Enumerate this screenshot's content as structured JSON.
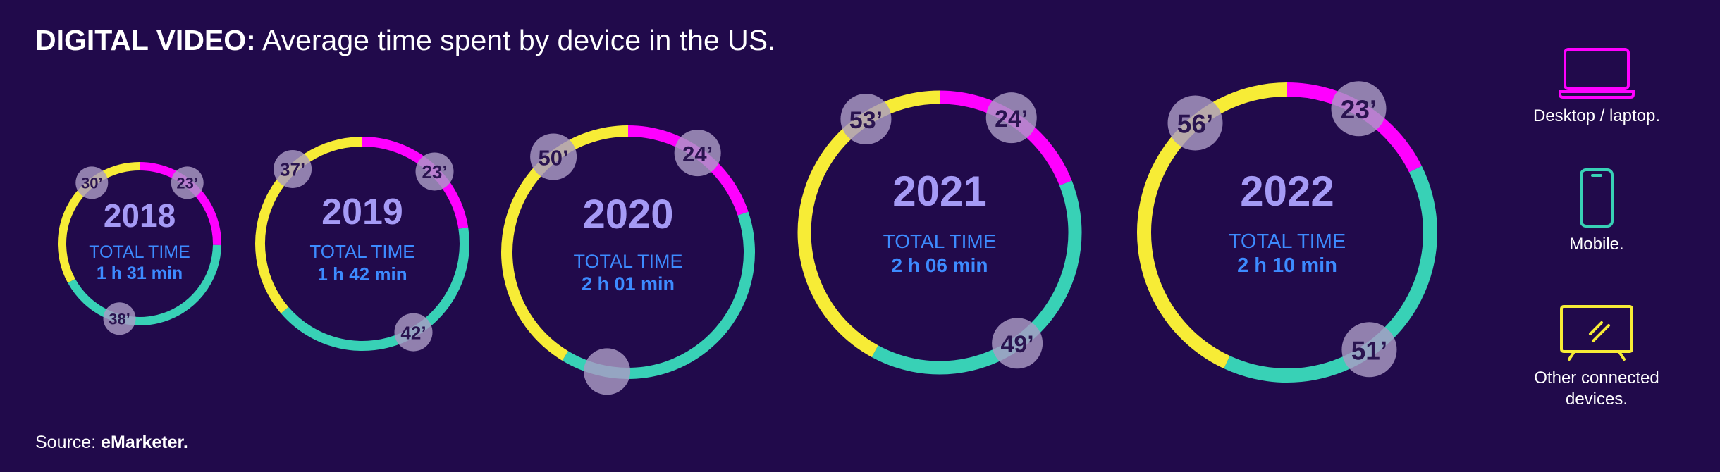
{
  "title": {
    "bold": "DIGITAL VIDEO:",
    "rest": " Average time spent by device in the US."
  },
  "source": {
    "label": "Source: ",
    "name": "eMarketer."
  },
  "legend": {
    "items": [
      {
        "label": "Desktop / laptop.",
        "icon": "laptop-icon",
        "color": "#ff00ff"
      },
      {
        "label": "Mobile.",
        "icon": "mobile-phone-icon",
        "color": "#38d1b6"
      },
      {
        "label": "Other connected devices.",
        "icon": "tv-icon",
        "color": "#f7ec36"
      }
    ]
  },
  "colors": {
    "background": "#210a4b",
    "desktop": "#ff00ff",
    "mobile": "#38d1b6",
    "other": "#f7ec36",
    "year_text": "#a59af5",
    "total_text": "#3d8bff",
    "badge": "#a99bc4",
    "badge_text": "#2a1450"
  },
  "chart_data": {
    "type": "donut",
    "title": "DIGITAL VIDEO: Average time spent by device in the US.",
    "series_order": [
      "Desktop / laptop.",
      "Mobile.",
      "Other connected devices."
    ],
    "total_label": "TOTAL TIME",
    "years": [
      {
        "year": "2018",
        "total": "1 h 31 min",
        "values": [
          23,
          38,
          30
        ],
        "labels": [
          "23’",
          "38’",
          "30’"
        ]
      },
      {
        "year": "2019",
        "total": "1 h 42 min",
        "values": [
          23,
          42,
          37
        ],
        "labels": [
          "23’",
          "42’",
          "37’"
        ]
      },
      {
        "year": "2020",
        "total": "2 h 01 min",
        "values": [
          24,
          47,
          50
        ],
        "labels": [
          "24’",
          "",
          "50’"
        ]
      },
      {
        "year": "2021",
        "total": "2 h 06 min",
        "values": [
          24,
          49,
          53
        ],
        "labels": [
          "24’",
          "49’",
          "53’"
        ]
      },
      {
        "year": "2022",
        "total": "2 h 10 min",
        "values": [
          23,
          51,
          56
        ],
        "labels": [
          "23’",
          "51’",
          "56’"
        ]
      }
    ]
  }
}
